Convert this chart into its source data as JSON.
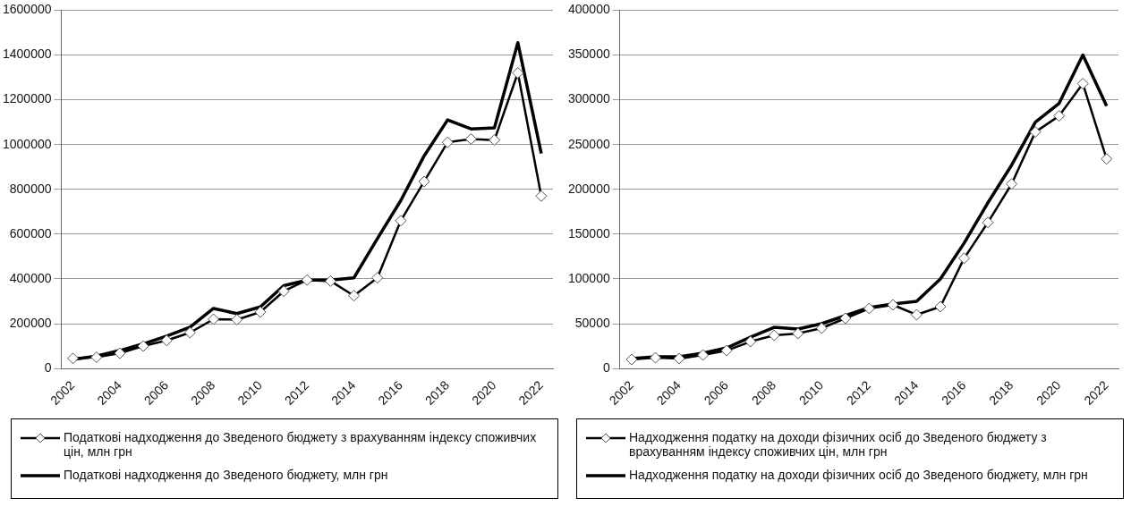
{
  "chart_data": [
    {
      "type": "line",
      "categories": [
        "2002",
        null,
        "2004",
        null,
        "2006",
        null,
        "2008",
        null,
        "2010",
        null,
        "2012",
        null,
        "2014",
        null,
        "2016",
        null,
        "2018",
        null,
        "2020",
        null,
        "2022"
      ],
      "series": [
        {
          "name": "Податкові надходження до Зведеного бюджету з врахуванням індексу споживчих цін, млн грн",
          "color": "#000000",
          "marker": "diamond",
          "values": [
            45000,
            50000,
            68000,
            100000,
            125000,
            160000,
            220000,
            218000,
            252000,
            345000,
            395000,
            390000,
            325000,
            405000,
            660000,
            835000,
            1010000,
            1025000,
            1020000,
            1320000,
            770000
          ]
        },
        {
          "name": "Податкові надходження до Зведеного бюджету, млн грн",
          "color": "#000000",
          "marker": "none",
          "values": [
            40000,
            55000,
            80000,
            110000,
            145000,
            185000,
            268000,
            245000,
            275000,
            370000,
            395000,
            395000,
            405000,
            580000,
            750000,
            950000,
            1110000,
            1070000,
            1075000,
            1455000,
            960000
          ]
        }
      ],
      "ylim": [
        0,
        1600000
      ],
      "yticks": [
        0,
        200000,
        400000,
        600000,
        800000,
        1000000,
        1200000,
        1400000,
        1600000
      ],
      "grid": "y",
      "legend": "bottom"
    },
    {
      "type": "line",
      "categories": [
        "2002",
        null,
        "2004",
        null,
        "2006",
        null,
        "2008",
        null,
        "2010",
        null,
        "2012",
        null,
        "2014",
        null,
        "2016",
        null,
        "2018",
        null,
        "2020",
        null,
        "2022"
      ],
      "series": [
        {
          "name": "Надходження податку на доходи фізичних осіб до Зведеного бюджету з врахуванням індексу споживчих цін, млн грн",
          "color": "#000000",
          "marker": "diamond",
          "values": [
            10000,
            12000,
            11000,
            15000,
            20000,
            30000,
            37000,
            39000,
            45000,
            56000,
            67000,
            71000,
            60000,
            69000,
            123000,
            163000,
            206000,
            264000,
            282000,
            318000,
            234000
          ]
        },
        {
          "name": "Надходження податку на доходи фізичних осіб до Зведеного бюджету, млн грн",
          "color": "#000000",
          "marker": "none",
          "values": [
            11000,
            13000,
            13000,
            17000,
            23000,
            35000,
            46000,
            44000,
            50000,
            59000,
            68000,
            72000,
            75000,
            100000,
            140000,
            185000,
            227000,
            275000,
            296000,
            350000,
            293000
          ]
        }
      ],
      "ylim": [
        0,
        400000
      ],
      "yticks": [
        0,
        50000,
        100000,
        150000,
        200000,
        250000,
        300000,
        350000,
        400000
      ],
      "grid": "y",
      "legend": "bottom"
    }
  ]
}
